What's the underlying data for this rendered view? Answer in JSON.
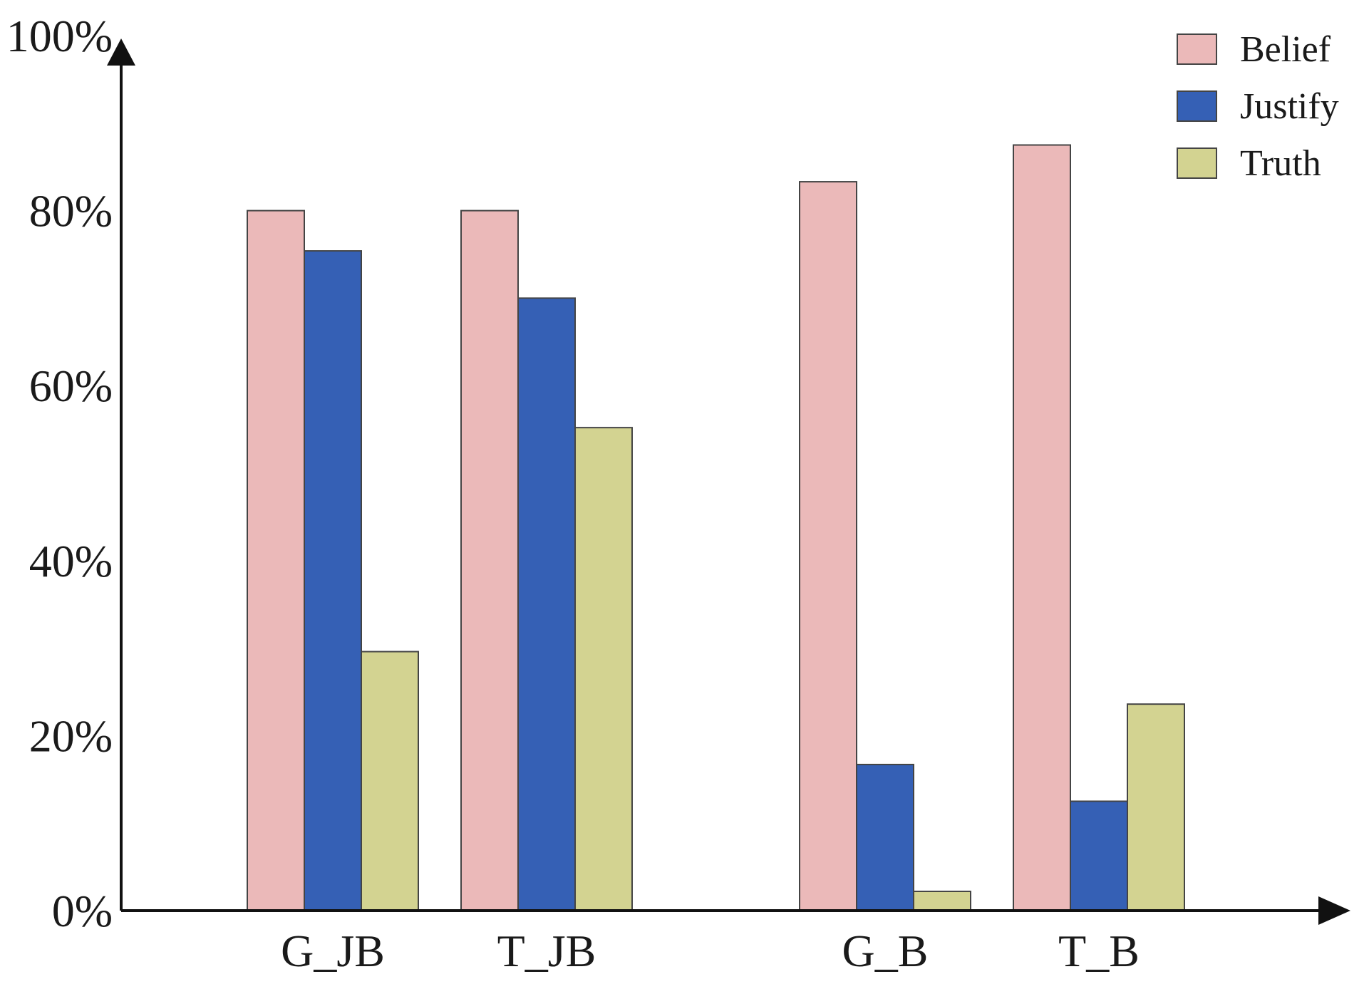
{
  "chart_data": {
    "type": "bar",
    "categories": [
      "G_JB",
      "T_JB",
      "G_B",
      "T_B"
    ],
    "series": [
      {
        "name": "Belief",
        "color": "#ebb9b9",
        "values": [
          80,
          80,
          83.3,
          87.5
        ]
      },
      {
        "name": "Justify",
        "color": "#3560b5",
        "values": [
          75.4,
          70,
          16.7,
          12.5
        ]
      },
      {
        "name": "Truth",
        "color": "#d3d391",
        "values": [
          29.6,
          55.2,
          2.2,
          23.6
        ]
      }
    ],
    "yticks": [
      "0%",
      "20%",
      "40%",
      "60%",
      "80%",
      "100%"
    ],
    "ytick_values": [
      0,
      20,
      40,
      60,
      80,
      100
    ],
    "ylim": [
      0,
      100
    ],
    "title": "",
    "xlabel": "",
    "ylabel": "",
    "legend_position": "top-right",
    "grid": false
  }
}
